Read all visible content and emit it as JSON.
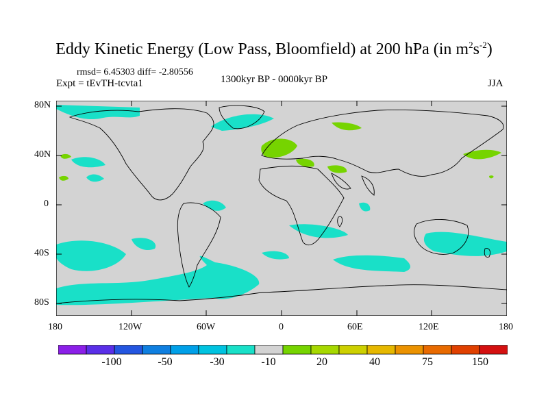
{
  "header": {
    "title_main": "Eddy Kinetic Energy (Low Pass, Bloomfield) at 200 hPa (in m",
    "title_sup1": "2",
    "title_mid": "s",
    "title_sup2": "-2",
    "title_end": ")",
    "stats": "rmsd= 6.45303 diff= -2.80556",
    "experiment": "Expt = tEvTH-tcvta1",
    "period": "1300kyr BP - 0000kyr BP",
    "season": "JJA"
  },
  "map": {
    "land_color": "#d3d3d3",
    "y_ticks": [
      "80N",
      "40N",
      "0",
      "40S",
      "80S"
    ],
    "x_ticks": [
      "180",
      "120W",
      "60W",
      "0",
      "60E",
      "120E",
      "180"
    ]
  },
  "legend": {
    "colors": [
      "#8b1fe8",
      "#5a2fe8",
      "#2456e0",
      "#0f7fe0",
      "#00a0e8",
      "#00c3e0",
      "#19e0c8",
      "#d3d3d3",
      "#76d400",
      "#a6d800",
      "#cdd000",
      "#e6b800",
      "#eb9200",
      "#e86a00",
      "#e04000",
      "#d41010"
    ],
    "labels": [
      "-100",
      "-50",
      "-30",
      "-10",
      "20",
      "40",
      "75",
      "150"
    ]
  },
  "palette": {
    "negative_fill": "#19e0c8",
    "positive_fill": "#76d400"
  }
}
